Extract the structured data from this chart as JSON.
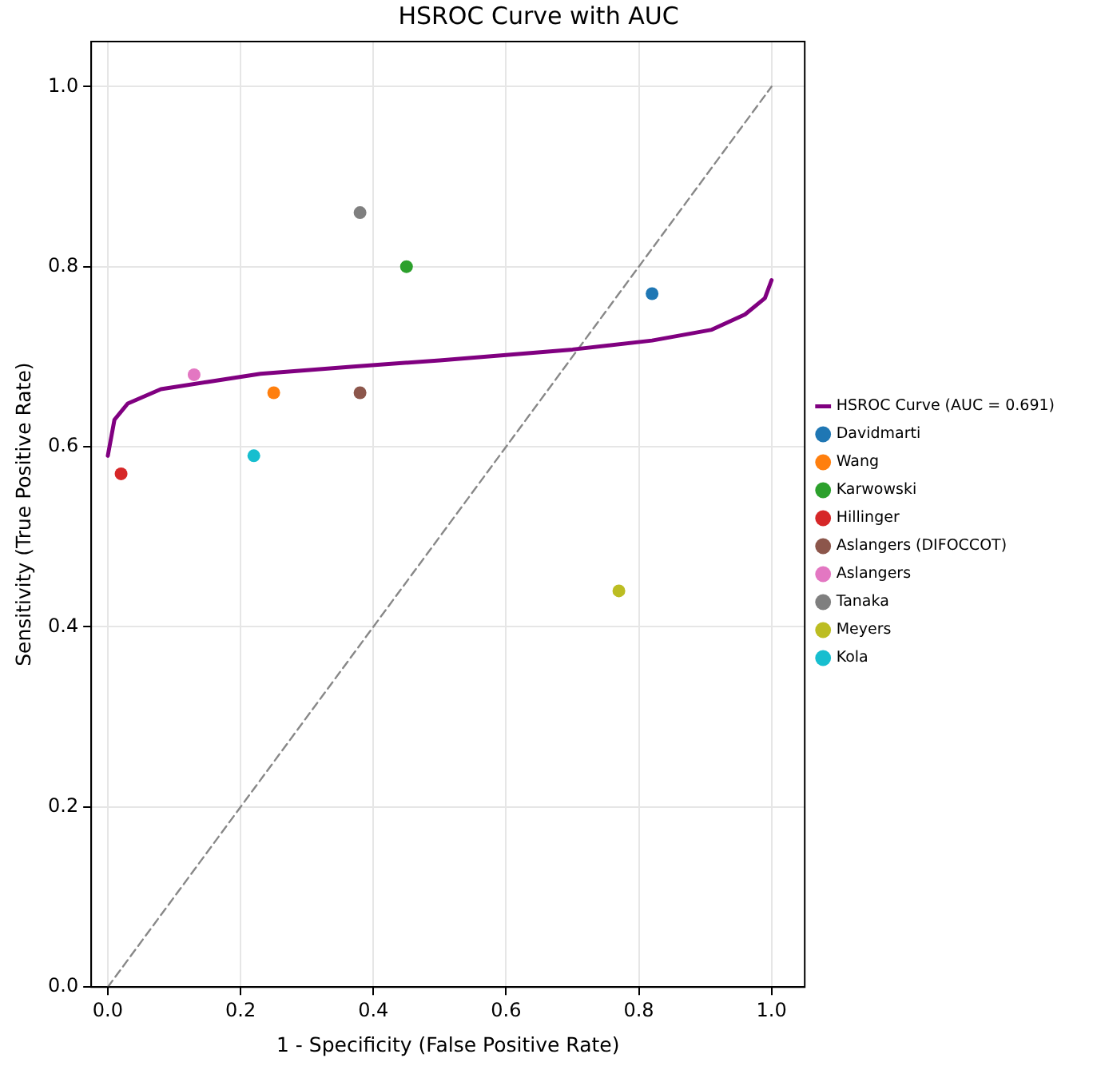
{
  "chart_data": {
    "type": "scatter",
    "title": "HSROC Curve with AUC",
    "xlabel": "1 - Specificity (False Positive Rate)",
    "ylabel": "Sensitivity (True Positive Rate)",
    "xlim": [
      -0.025,
      1.05
    ],
    "ylim": [
      0,
      1.05
    ],
    "xticks": [
      {
        "value": 0,
        "label": "0.0"
      },
      0.2,
      0.4,
      0.6,
      0.8,
      {
        "value": 1,
        "label": "1.0"
      }
    ],
    "yticks": [
      {
        "value": 0,
        "label": "0.0"
      },
      0.2,
      0.4,
      0.6,
      0.8,
      {
        "value": 1,
        "label": "1.0"
      }
    ],
    "grid": true,
    "legend": "right",
    "series": [
      {
        "type": "line",
        "name": "HSROC Curve (AUC = 0.691)",
        "color": "#800080",
        "marker": "none",
        "line_style": "solid",
        "x": [
          0,
          0.01,
          0.03,
          0.08,
          0.15,
          0.23,
          0.37,
          0.5,
          0.7,
          0.82,
          0.91,
          0.96,
          0.99,
          1
        ],
        "values": [
          0.59,
          0.63,
          0.648,
          0.664,
          0.672,
          0.681,
          0.689,
          0.696,
          0.708,
          0.718,
          0.73,
          0.747,
          0.765,
          0.785
        ]
      },
      {
        "name": "Davidmarti",
        "color": "#1f77b4",
        "marker": "circle",
        "x": [
          0.82
        ],
        "values": [
          0.77
        ]
      },
      {
        "name": "Wang",
        "color": "#ff7f0e",
        "marker": "circle",
        "x": [
          0.25
        ],
        "values": [
          0.66
        ]
      },
      {
        "name": "Karwowski",
        "color": "#2ca02c",
        "marker": "circle",
        "x": [
          0.45
        ],
        "values": [
          0.8
        ]
      },
      {
        "name": "Hillinger",
        "color": "#d62728",
        "marker": "circle",
        "x": [
          0.02
        ],
        "values": [
          0.57
        ]
      },
      {
        "name": "Aslangers (DIFOCCOT)",
        "color": "#8c564b",
        "marker": "circle",
        "x": [
          0.38
        ],
        "values": [
          0.66
        ]
      },
      {
        "name": "Aslangers",
        "color": "#e377c2",
        "marker": "circle",
        "x": [
          0.13
        ],
        "values": [
          0.68
        ]
      },
      {
        "name": "Tanaka",
        "color": "#7f7f7f",
        "marker": "circle",
        "x": [
          0.38
        ],
        "values": [
          0.86
        ]
      },
      {
        "name": "Meyers",
        "color": "#bcbd22",
        "marker": "circle",
        "x": [
          0.77
        ],
        "values": [
          0.44
        ]
      },
      {
        "name": "Kola",
        "color": "#17becf",
        "marker": "circle",
        "x": [
          0.22
        ],
        "values": [
          0.59
        ]
      },
      {
        "type": "line",
        "color": "#888888",
        "marker": "none",
        "line_style": "dashed",
        "x": [
          0,
          1
        ],
        "values": [
          0,
          1
        ]
      }
    ]
  }
}
